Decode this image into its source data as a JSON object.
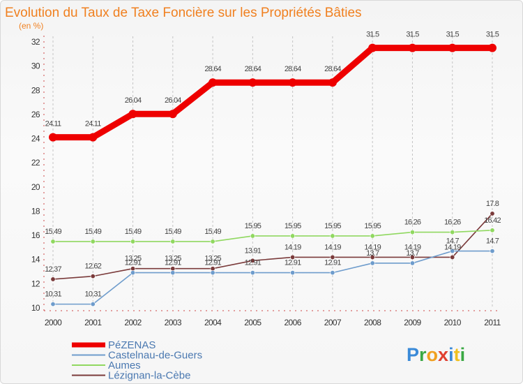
{
  "chart_data": {
    "type": "line",
    "title": "Evolution du Taux de Taxe Foncière sur les Propriétés Bâties",
    "ylabel": "(en %)",
    "xlabel": "",
    "ylim": [
      10,
      32
    ],
    "yticks": [
      "10",
      "12",
      "14",
      "16",
      "18",
      "20",
      "22",
      "24",
      "26",
      "28",
      "30",
      "32"
    ],
    "categories": [
      "2000",
      "2001",
      "2002",
      "2003",
      "2004",
      "2005",
      "2006",
      "2007",
      "2008",
      "2009",
      "2010",
      "2011"
    ],
    "series": [
      {
        "name": "PéZENAS",
        "color": "#ee0000",
        "values": [
          24.11,
          24.11,
          26.04,
          26.04,
          28.64,
          28.64,
          28.64,
          28.64,
          31.5,
          31.5,
          31.5,
          31.5
        ],
        "labels": [
          "24.11",
          "24.11",
          "26.04",
          "26.04",
          "28.64",
          "28.64",
          "28.64",
          "28.64",
          "31.5",
          "31.5",
          "31.5",
          "31.5"
        ]
      },
      {
        "name": "Castelnau-de-Guers",
        "color": "#6e9ccc",
        "values": [
          10.31,
          10.31,
          12.91,
          12.91,
          12.91,
          12.91,
          12.91,
          12.91,
          13.7,
          13.7,
          14.7,
          14.7
        ],
        "labels": [
          "10.31",
          "10.31",
          "12.91",
          "12.91",
          "12.91",
          "12.91",
          "12.91",
          "12.91",
          "13.7",
          "13.7",
          "14.7",
          "14.7"
        ]
      },
      {
        "name": "Aumes",
        "color": "#90d860",
        "values": [
          15.49,
          15.49,
          15.49,
          15.49,
          15.49,
          15.95,
          15.95,
          15.95,
          15.95,
          16.26,
          16.26,
          16.42
        ],
        "labels": [
          "15.49",
          "15.49",
          "15.49",
          "15.49",
          "15.49",
          "15.95",
          "15.95",
          "15.95",
          "15.95",
          "16.26",
          "16.26",
          "16.42"
        ]
      },
      {
        "name": "Lézignan-la-Cèbe",
        "color": "#7a3a3a",
        "values": [
          12.37,
          12.62,
          13.25,
          13.25,
          13.25,
          13.91,
          14.19,
          14.19,
          14.19,
          14.19,
          14.19,
          17.8
        ],
        "labels": [
          "12.37",
          "12.62",
          "13.25",
          "13.25",
          "13.25",
          "13.91",
          "14.19",
          "14.19",
          "14.19",
          "14.19",
          "14.19",
          "17.8"
        ]
      }
    ],
    "grid": "vertical-dashed",
    "legend": "bottom-left"
  },
  "logo": {
    "text": "Proxiti"
  }
}
